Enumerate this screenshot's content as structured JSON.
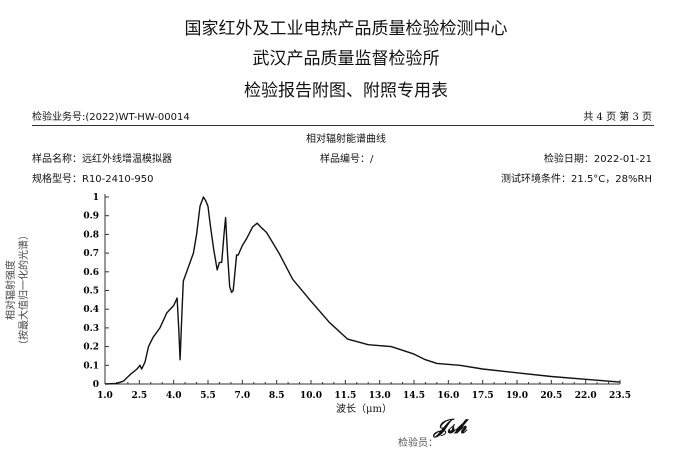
{
  "header": {
    "title1": "国家红外及工业电热产品质量检验检测中心",
    "title2": "武汉产品质量监督检验所",
    "title3": "检验报告附图、附照专用表"
  },
  "meta": {
    "business_no": "检验业务号:(2022)WT-HW-00014",
    "pages": "共 4 页 第 3 页",
    "chart_title": "相对辐射能谱曲线",
    "sample_name": "样品名称：远红外线增温模拟器",
    "sample_no": "样品编号：/",
    "date": "检验日期：2022-01-21",
    "model": "规格型号：R10-2410-950",
    "env": "测试环境条件：21.5°C，28%RH"
  },
  "footer": {
    "inspector_label": "检验员：",
    "signature": "黄沈信"
  },
  "chart_data": {
    "type": "line",
    "title": "相对辐射能谱曲线",
    "xlabel": "波长（μm）",
    "ylabel": "相对辐射强度",
    "ylabel2": "（按最大值归一化的光谱）",
    "xlim": [
      1.0,
      23.5
    ],
    "ylim": [
      0,
      1
    ],
    "grid": false,
    "line_color": "#111111",
    "xticks": [
      "1.0",
      "2.5",
      "4.0",
      "5.5",
      "7.0",
      "8.5",
      "10.0",
      "11.5",
      "13.0",
      "14.5",
      "16.0",
      "17.5",
      "19.0",
      "20.5",
      "22.0",
      "23.5"
    ],
    "yticks": [
      "0",
      "0.1",
      "0.2",
      "0.3",
      "0.4",
      "0.5",
      "0.6",
      "0.7",
      "0.8",
      "0.9",
      "1"
    ],
    "x": [
      1.0,
      1.5,
      1.8,
      2.1,
      2.4,
      2.53,
      2.6,
      2.68,
      2.75,
      2.9,
      3.1,
      3.4,
      3.7,
      4.0,
      4.15,
      4.22,
      4.28,
      4.35,
      4.42,
      4.57,
      4.86,
      5.0,
      5.15,
      5.3,
      5.4,
      5.5,
      5.6,
      5.75,
      5.9,
      6.0,
      6.1,
      6.2,
      6.27,
      6.35,
      6.45,
      6.53,
      6.6,
      6.75,
      6.82,
      7.0,
      7.2,
      7.45,
      7.65,
      7.8,
      8.06,
      8.6,
      9.2,
      9.95,
      10.8,
      11.6,
      12.5,
      13.5,
      14.0,
      14.5,
      15.0,
      15.5,
      16.5,
      17.5,
      19.0,
      20.5,
      22.0,
      23.5
    ],
    "y": [
      0,
      0.003,
      0.015,
      0.05,
      0.08,
      0.1,
      0.08,
      0.1,
      0.12,
      0.2,
      0.25,
      0.3,
      0.38,
      0.42,
      0.46,
      0.3,
      0.13,
      0.35,
      0.55,
      0.6,
      0.7,
      0.8,
      0.95,
      1.0,
      0.98,
      0.95,
      0.85,
      0.72,
      0.61,
      0.65,
      0.65,
      0.8,
      0.89,
      0.7,
      0.52,
      0.49,
      0.5,
      0.69,
      0.69,
      0.74,
      0.78,
      0.84,
      0.86,
      0.84,
      0.81,
      0.7,
      0.56,
      0.45,
      0.33,
      0.24,
      0.21,
      0.2,
      0.18,
      0.16,
      0.13,
      0.11,
      0.1,
      0.08,
      0.06,
      0.04,
      0.025,
      0.01
    ]
  }
}
